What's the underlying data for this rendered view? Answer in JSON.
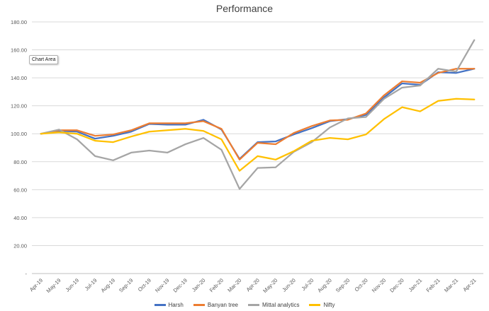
{
  "chart_data": {
    "type": "line",
    "title": "Performance",
    "tooltip": "Chart Area",
    "xlabel": "",
    "ylabel": "",
    "ylim": [
      0,
      180
    ],
    "yticks": [
      0,
      20,
      40,
      60,
      80,
      100,
      120,
      140,
      160,
      180
    ],
    "ytick_labels": [
      "-",
      "20.00",
      "40.00",
      "60.00",
      "80.00",
      "100.00",
      "120.00",
      "140.00",
      "160.00",
      "180.00"
    ],
    "grid": true,
    "legend_position": "bottom",
    "categories": [
      "Apr-19",
      "May-19",
      "Jun-19",
      "Jul-19",
      "Aug-19",
      "Sep-19",
      "Oct-19",
      "Nov-19",
      "Dec-19",
      "Jan-20",
      "Feb-20",
      "Mar-20",
      "Apr-20",
      "May-20",
      "Jun-20",
      "Jul-20",
      "Aug-20",
      "Sep-20",
      "Oct-20",
      "Nov-20",
      "Dec-20",
      "Jan-21",
      "Feb-21",
      "Mar-21",
      "Apr-21"
    ],
    "series": [
      {
        "name": "Harsh",
        "color": "#4472c4",
        "values": [
          100,
          102,
          101.5,
          96.5,
          98.5,
          101.5,
          107,
          106.5,
          106.5,
          110,
          103,
          82,
          94,
          94.5,
          99.5,
          104,
          109,
          110.5,
          113.5,
          126,
          136,
          135,
          144,
          143.5,
          146.5
        ]
      },
      {
        "name": "Banyan tree",
        "color": "#ed7d31",
        "values": [
          100,
          102.5,
          102.5,
          98.5,
          99.5,
          102.5,
          107.5,
          107.5,
          107.5,
          109,
          103.5,
          81.5,
          93.5,
          92.5,
          100.5,
          105.5,
          109.5,
          110,
          114.5,
          127.5,
          137.5,
          136.5,
          143.5,
          146.5,
          146.5
        ]
      },
      {
        "name": "Mittal analytics",
        "color": "#a5a5a5",
        "values": [
          100,
          103,
          96,
          84,
          81,
          86.5,
          88,
          86.5,
          92.5,
          97,
          88.5,
          60.5,
          75.5,
          76,
          87,
          94,
          104.5,
          111,
          112,
          125,
          133,
          134.5,
          146.5,
          144.5,
          167
        ]
      },
      {
        "name": "Nifty",
        "color": "#ffc000",
        "values": [
          100,
          101,
          100,
          95,
          94,
          98,
          101.5,
          102.5,
          103.5,
          102,
          96,
          73.5,
          84,
          81.5,
          87.5,
          95,
          97,
          96,
          99.5,
          110.5,
          119,
          116,
          123.5,
          125,
          124.5
        ]
      }
    ]
  }
}
